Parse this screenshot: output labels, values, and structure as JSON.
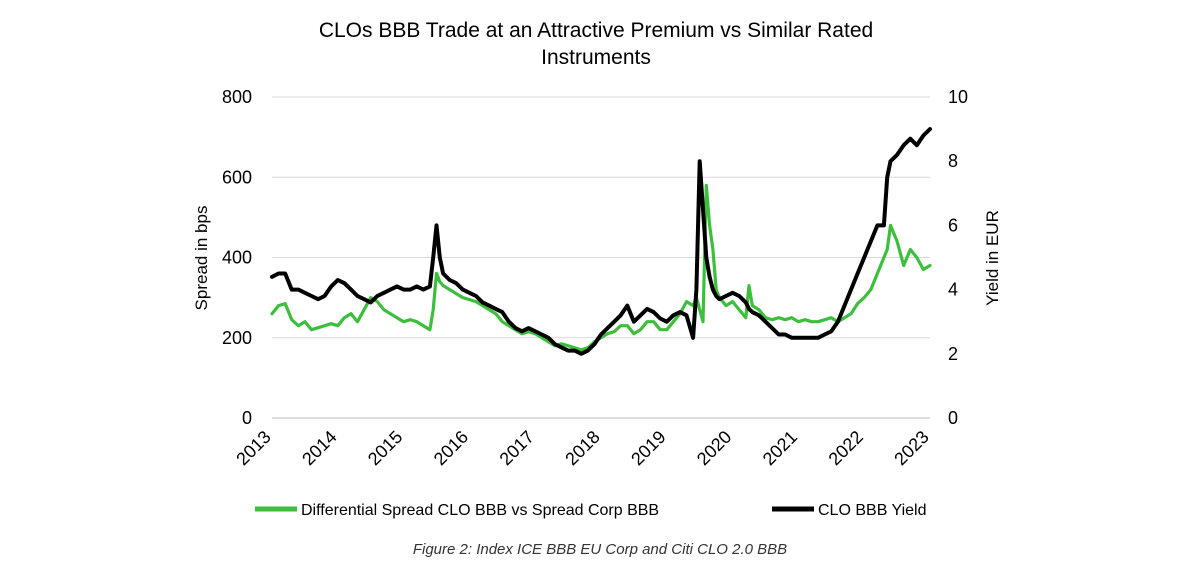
{
  "chart_data": {
    "type": "line",
    "title": "CLOs BBB Trade at an Attractive Premium vs Similar Rated Instruments",
    "title_lines": [
      "CLOs BBB Trade at an Attractive Premium vs Similar Rated",
      "Instruments"
    ],
    "ylabel": "Spread in bps",
    "y2label": "Yield in EUR",
    "xlim": [
      2013,
      2023
    ],
    "ylim": [
      0,
      800
    ],
    "y2lim": [
      0,
      10
    ],
    "xticks": [
      "2013",
      "2014",
      "2015",
      "2016",
      "2017",
      "2018",
      "2019",
      "2020",
      "2021",
      "2022",
      "2023"
    ],
    "yticks": [
      "0",
      "200",
      "400",
      "600",
      "800"
    ],
    "y2ticks": [
      "0",
      "2",
      "4",
      "6",
      "8",
      "10"
    ],
    "grid": "horizontal",
    "legend_position": "bottom",
    "series": [
      {
        "name": "Differential Spread CLO BBB vs Spread Corp BBB",
        "axis": "left",
        "color": "#3dbf3d",
        "x": [
          2013.0,
          2013.1,
          2013.2,
          2013.3,
          2013.4,
          2013.5,
          2013.6,
          2013.7,
          2013.8,
          2013.9,
          2014.0,
          2014.1,
          2014.2,
          2014.3,
          2014.4,
          2014.5,
          2014.6,
          2014.7,
          2014.8,
          2014.9,
          2015.0,
          2015.1,
          2015.2,
          2015.3,
          2015.4,
          2015.45,
          2015.5,
          2015.55,
          2015.6,
          2015.7,
          2015.8,
          2015.9,
          2016.0,
          2016.1,
          2016.2,
          2016.3,
          2016.4,
          2016.5,
          2016.6,
          2016.7,
          2016.8,
          2016.9,
          2017.0,
          2017.1,
          2017.2,
          2017.3,
          2017.4,
          2017.5,
          2017.6,
          2017.7,
          2017.8,
          2017.9,
          2018.0,
          2018.1,
          2018.2,
          2018.3,
          2018.4,
          2018.5,
          2018.6,
          2018.7,
          2018.8,
          2018.9,
          2019.0,
          2019.1,
          2019.2,
          2019.3,
          2019.4,
          2019.45,
          2019.5,
          2019.55,
          2019.6,
          2019.65,
          2019.7,
          2019.75,
          2019.8,
          2019.9,
          2020.0,
          2020.1,
          2020.2,
          2020.25,
          2020.3,
          2020.4,
          2020.5,
          2020.6,
          2020.7,
          2020.8,
          2020.9,
          2021.0,
          2021.1,
          2021.2,
          2021.3,
          2021.4,
          2021.5,
          2021.6,
          2021.7,
          2021.8,
          2021.9,
          2022.0,
          2022.1,
          2022.2,
          2022.3,
          2022.35,
          2022.4,
          2022.5,
          2022.6,
          2022.7,
          2022.8,
          2022.9,
          2023.0
        ],
        "values": [
          260,
          280,
          285,
          245,
          230,
          240,
          220,
          225,
          230,
          235,
          230,
          250,
          260,
          240,
          270,
          300,
          290,
          270,
          260,
          250,
          240,
          245,
          240,
          230,
          220,
          270,
          360,
          340,
          330,
          320,
          310,
          300,
          295,
          290,
          280,
          270,
          260,
          240,
          230,
          220,
          210,
          215,
          210,
          200,
          190,
          180,
          185,
          180,
          175,
          170,
          175,
          190,
          200,
          210,
          215,
          230,
          230,
          210,
          220,
          240,
          240,
          220,
          220,
          240,
          260,
          290,
          280,
          300,
          270,
          240,
          580,
          480,
          420,
          320,
          300,
          280,
          290,
          270,
          250,
          330,
          280,
          270,
          250,
          245,
          250,
          245,
          250,
          240,
          245,
          240,
          240,
          245,
          250,
          240,
          250,
          260,
          285,
          300,
          320,
          360,
          400,
          420,
          480,
          440,
          380,
          420,
          400,
          370,
          380
        ]
      },
      {
        "name": "CLO BBB Yield",
        "axis": "right",
        "color": "#000000",
        "x": [
          2013.0,
          2013.1,
          2013.2,
          2013.3,
          2013.4,
          2013.5,
          2013.6,
          2013.7,
          2013.8,
          2013.9,
          2014.0,
          2014.1,
          2014.2,
          2014.3,
          2014.4,
          2014.5,
          2014.6,
          2014.7,
          2014.8,
          2014.9,
          2015.0,
          2015.1,
          2015.2,
          2015.3,
          2015.4,
          2015.45,
          2015.5,
          2015.55,
          2015.6,
          2015.7,
          2015.8,
          2015.9,
          2016.0,
          2016.1,
          2016.2,
          2016.3,
          2016.4,
          2016.5,
          2016.6,
          2016.7,
          2016.8,
          2016.9,
          2017.0,
          2017.1,
          2017.2,
          2017.3,
          2017.4,
          2017.5,
          2017.6,
          2017.7,
          2017.8,
          2017.9,
          2018.0,
          2018.1,
          2018.2,
          2018.3,
          2018.4,
          2018.5,
          2018.6,
          2018.7,
          2018.8,
          2018.9,
          2019.0,
          2019.1,
          2019.2,
          2019.3,
          2019.4,
          2019.45,
          2019.5,
          2019.55,
          2019.6,
          2019.65,
          2019.7,
          2019.75,
          2019.8,
          2019.9,
          2020.0,
          2020.1,
          2020.2,
          2020.25,
          2020.3,
          2020.4,
          2020.5,
          2020.6,
          2020.7,
          2020.8,
          2020.9,
          2021.0,
          2021.1,
          2021.2,
          2021.3,
          2021.4,
          2021.5,
          2021.6,
          2021.7,
          2021.8,
          2021.9,
          2022.0,
          2022.1,
          2022.2,
          2022.3,
          2022.35,
          2022.4,
          2022.5,
          2022.6,
          2022.7,
          2022.8,
          2022.9,
          2023.0
        ],
        "values": [
          4.4,
          4.5,
          4.5,
          4.0,
          4.0,
          3.9,
          3.8,
          3.7,
          3.8,
          4.1,
          4.3,
          4.2,
          4.0,
          3.8,
          3.7,
          3.6,
          3.8,
          3.9,
          4.0,
          4.1,
          4.0,
          4.0,
          4.1,
          4.0,
          4.1,
          5.0,
          6.0,
          5.0,
          4.5,
          4.3,
          4.2,
          4.0,
          3.9,
          3.8,
          3.6,
          3.5,
          3.4,
          3.3,
          3.0,
          2.8,
          2.7,
          2.8,
          2.7,
          2.6,
          2.5,
          2.3,
          2.2,
          2.1,
          2.1,
          2.0,
          2.1,
          2.3,
          2.6,
          2.8,
          3.0,
          3.2,
          3.5,
          3.0,
          3.2,
          3.4,
          3.3,
          3.1,
          3.0,
          3.2,
          3.3,
          3.2,
          2.5,
          4.0,
          8.0,
          6.5,
          5.0,
          4.4,
          4.0,
          3.8,
          3.7,
          3.8,
          3.9,
          3.8,
          3.6,
          3.4,
          3.3,
          3.2,
          3.0,
          2.8,
          2.6,
          2.6,
          2.5,
          2.5,
          2.5,
          2.5,
          2.5,
          2.6,
          2.7,
          3.0,
          3.5,
          4.0,
          4.5,
          5.0,
          5.5,
          6.0,
          6.0,
          7.5,
          8.0,
          8.2,
          8.5,
          8.7,
          8.5,
          8.8,
          9.0
        ]
      }
    ]
  },
  "caption": "Figure 2: Index ICE BBB EU Corp and Citi CLO 2.0 BBB"
}
